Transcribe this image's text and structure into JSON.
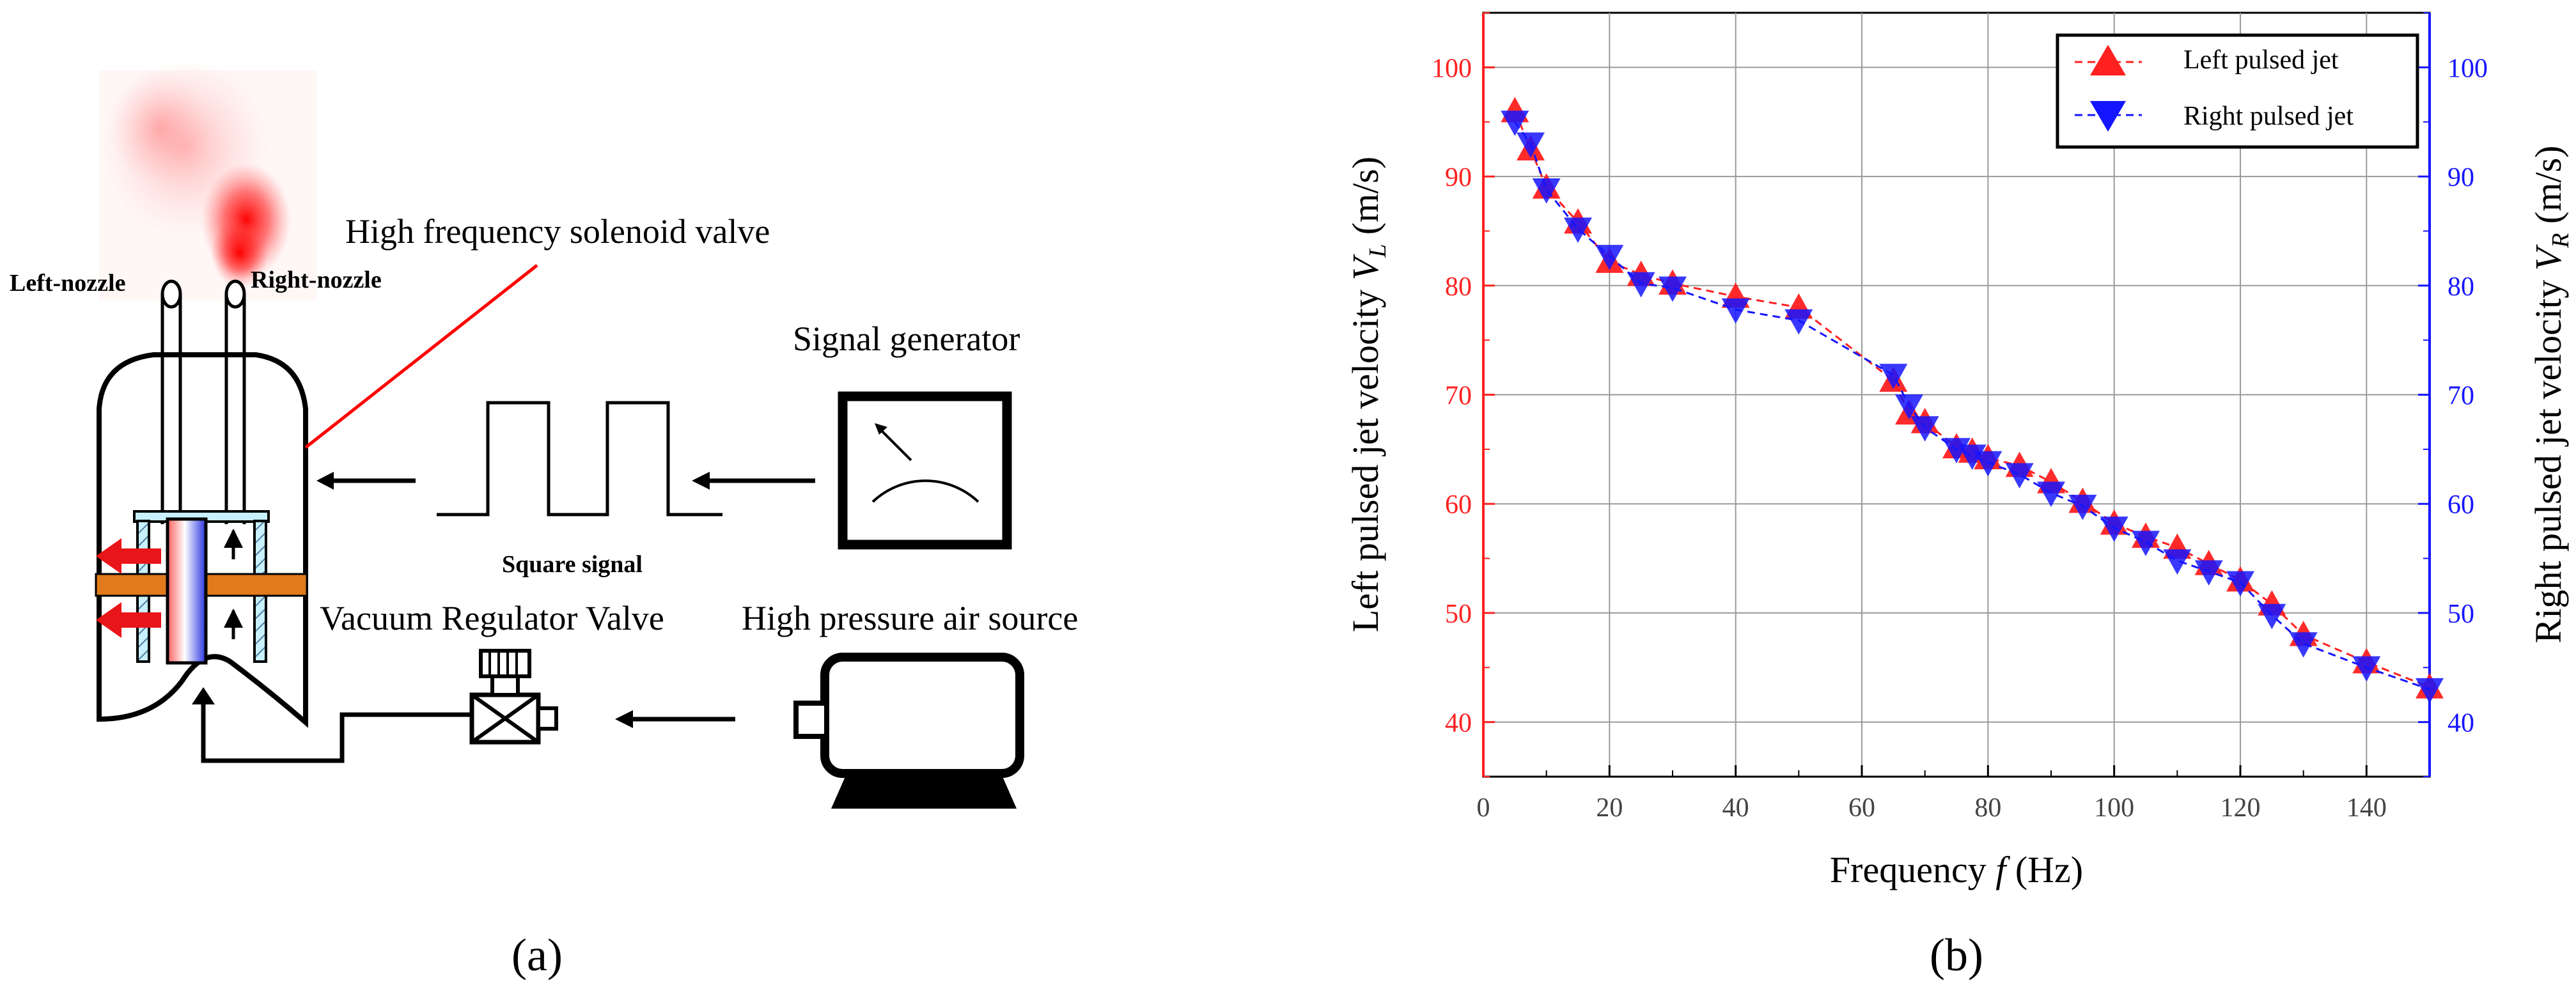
{
  "panel_a": {
    "caption": "(a)",
    "labels": {
      "valve": "High frequency solenoid valve",
      "left_nozzle": "Left-nozzle",
      "right_nozzle": "Right-nozzle",
      "signal_generator": "Signal generator",
      "square_signal": "Square signal",
      "vacuum_valve": "Vacuum Regulator Valve",
      "air_source": "High pressure air source"
    },
    "colors": {
      "flow_arrow": "#e8161a",
      "plate": "#e07a1c",
      "piston_red": "#f04040",
      "piston_blue": "#2a35e0",
      "leader_line": "#ff0000"
    }
  },
  "panel_b": {
    "caption": "(b)"
  },
  "chart_data": {
    "type": "line",
    "xlabel": "Frequency f (Hz)",
    "ylabel_left": "Left pulsed jet velocity V_L (m/s)",
    "ylabel_right": "Right pulsed jet velocity V_R (m/s)",
    "xlim": [
      0,
      150
    ],
    "ylim": [
      35,
      105
    ],
    "x_ticks": [
      0,
      20,
      40,
      60,
      80,
      100,
      120,
      140
    ],
    "y_ticks": [
      40,
      50,
      60,
      70,
      80,
      90,
      100
    ],
    "grid": true,
    "legend_position": "top-right",
    "axis_colors": {
      "left": "#ff2020",
      "right": "#1515ff"
    },
    "series": [
      {
        "name": "Left pulsed jet",
        "color": "#ff2020",
        "marker": "triangle-up",
        "x": [
          5,
          7.5,
          10,
          15,
          20,
          25,
          30,
          40,
          50,
          65,
          67.5,
          70,
          75,
          77.5,
          80,
          85,
          90,
          95,
          100,
          105,
          110,
          115,
          120,
          125,
          130,
          140,
          150
        ],
        "y": [
          96,
          92.5,
          89,
          85.8,
          82.2,
          81,
          80.2,
          79,
          78,
          71.3,
          68.3,
          67.5,
          65.2,
          64.8,
          64.2,
          63.5,
          62,
          60.2,
          58.2,
          57,
          56,
          54.5,
          53,
          50.8,
          48,
          45.5,
          43.2
        ]
      },
      {
        "name": "Right pulsed jet",
        "color": "#1515ff",
        "marker": "triangle-down",
        "x": [
          5,
          7.5,
          10,
          15,
          20,
          25,
          30,
          40,
          50,
          65,
          67.5,
          70,
          75,
          77.5,
          80,
          85,
          90,
          95,
          100,
          105,
          110,
          115,
          120,
          125,
          130,
          140,
          150
        ],
        "y": [
          95,
          93,
          88.8,
          85.2,
          82.7,
          80.2,
          79.8,
          77.8,
          76.8,
          71.8,
          69,
          67,
          65,
          64.4,
          63.8,
          62.7,
          61,
          59.8,
          57.8,
          56.5,
          54.8,
          53.8,
          52.8,
          49.8,
          47.2,
          45,
          43
        ]
      }
    ]
  }
}
